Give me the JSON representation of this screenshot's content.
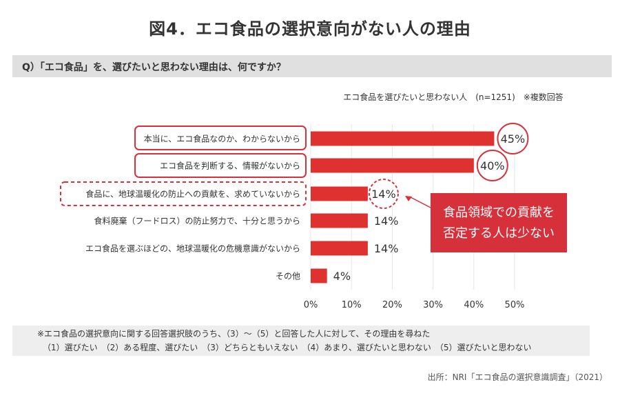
{
  "title": "図4．エコ食品の選択意向がない人の理由",
  "question": "Q）「エコ食品」を、選びたいと思わない理由は、何ですか？",
  "chart_data": {
    "type": "bar",
    "orientation": "horizontal",
    "subtitle": "エコ食品を選びたいと思わない人　(n=1251)　※複数回答",
    "categories": [
      "本当に、エコ食品なのか、わからないから",
      "エコ食品を判断する、情報がないから",
      "食品に、地球温暖化の防止への貢献を、求めていないから",
      "食料廃棄（フードロス）の防止努力で、十分と思うから",
      "エコ食品を選ぶほどの、地球温暖化の危機意識がないから",
      "その他"
    ],
    "values": [
      45,
      40,
      14,
      14,
      14,
      4
    ],
    "value_labels": [
      "45%",
      "40%",
      "14%",
      "14%",
      "14%",
      "4%"
    ],
    "xlim": [
      0,
      50
    ],
    "xticks": [
      "0%",
      "10%",
      "20%",
      "30%",
      "40%",
      "50%"
    ],
    "grid": true,
    "bar_color": "#e03131",
    "highlight_color": "#d6303a",
    "annotation": [
      "食品領域での貢献を",
      "否定する人は少ない"
    ]
  },
  "footnote": {
    "line1": "※エコ食品の選択意向に関する回答選択肢のうち、（3）～（5）と回答した人に対して、その理由を尋ねた",
    "line2": "（1）選びたい　（2）ある程度、選びたい　（3）どちらともいえない　（4）あまり、選びたいと思わない　（5）選びたいと思わない"
  },
  "source": "出所：NRI「エコ食品の選択意識調査」（2021）"
}
